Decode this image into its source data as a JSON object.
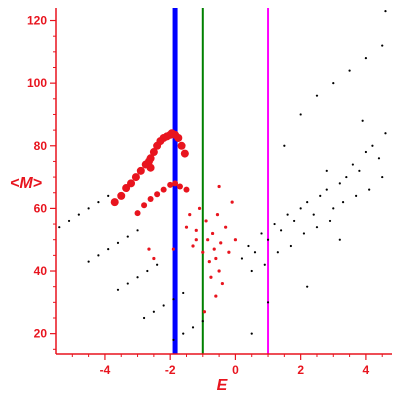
{
  "chart_data": {
    "type": "scatter",
    "title": "",
    "xlabel": "E",
    "ylabel": "<M>",
    "xlim": [
      -5.5,
      4.8
    ],
    "ylim": [
      13.5,
      124
    ],
    "x_ticks": [
      -4,
      -2,
      0,
      2,
      4
    ],
    "y_ticks": [
      20,
      40,
      60,
      80,
      100,
      120
    ],
    "grid": false,
    "legend": "none",
    "colors": {
      "axis": "#e8141e",
      "black_points": "#000000",
      "red_points": "#e8141e"
    },
    "vertical_lines": [
      {
        "x": -1.85,
        "color": "#0000ff"
      },
      {
        "x": -1.0,
        "color": "#008000"
      },
      {
        "x": 1.0,
        "color": "#ff00ff"
      }
    ],
    "series": [
      {
        "color": "#e8141e",
        "marker": "large red dots along the top ridge",
        "points": [
          [
            -3.7,
            62
          ],
          [
            -3.5,
            64
          ],
          [
            -3.35,
            66.5
          ],
          [
            -3.2,
            68
          ],
          [
            -3.05,
            70
          ],
          [
            -2.9,
            72
          ],
          [
            -2.75,
            74
          ],
          [
            -2.6,
            76
          ],
          [
            -2.5,
            78
          ],
          [
            -2.4,
            80
          ],
          [
            -2.3,
            81.5
          ],
          [
            -2.2,
            82.5
          ],
          [
            -2.1,
            83
          ],
          [
            -2.0,
            83.5
          ],
          [
            -1.95,
            84
          ],
          [
            -1.85,
            83.5
          ],
          [
            -1.75,
            82.5
          ],
          [
            -1.65,
            80
          ],
          [
            -1.55,
            77.5
          ],
          [
            -2.6,
            73
          ],
          [
            -2.65,
            75
          ]
        ]
      },
      {
        "color": "#e8141e",
        "marker": "medium red dots along the second ridge",
        "points": [
          [
            -3.0,
            58.5
          ],
          [
            -2.8,
            61
          ],
          [
            -2.6,
            63
          ],
          [
            -2.4,
            64.5
          ],
          [
            -2.2,
            66
          ],
          [
            -2.0,
            67.5
          ],
          [
            -1.85,
            68
          ],
          [
            -1.7,
            67
          ],
          [
            -1.5,
            66
          ]
        ]
      },
      {
        "color": "#e8141e",
        "marker": "small red scattered points",
        "points": [
          [
            -2.65,
            47
          ],
          [
            -2.5,
            44
          ],
          [
            -1.9,
            47
          ],
          [
            -1.5,
            54
          ],
          [
            -1.4,
            58
          ],
          [
            -1.3,
            48
          ],
          [
            -1.2,
            53
          ],
          [
            -1.1,
            60
          ],
          [
            -1.0,
            46
          ],
          [
            -0.9,
            56
          ],
          [
            -0.85,
            50
          ],
          [
            -0.8,
            43
          ],
          [
            -0.75,
            38
          ],
          [
            -0.7,
            52
          ],
          [
            -0.65,
            47
          ],
          [
            -0.6,
            44
          ],
          [
            -0.55,
            58
          ],
          [
            -0.5,
            40
          ],
          [
            -0.45,
            49
          ],
          [
            -0.4,
            36
          ],
          [
            -0.3,
            54
          ],
          [
            -0.2,
            46
          ],
          [
            -0.1,
            62
          ],
          [
            0.0,
            50
          ],
          [
            -0.6,
            32
          ],
          [
            -0.95,
            27
          ],
          [
            -1.2,
            50
          ],
          [
            -0.5,
            67
          ]
        ]
      },
      {
        "color": "#000000",
        "marker": "black diagonal trail and tiny dots",
        "points": [
          [
            -5.4,
            54
          ],
          [
            -5.1,
            56
          ],
          [
            -4.8,
            58
          ],
          [
            -4.5,
            60
          ],
          [
            -4.2,
            62
          ],
          [
            -3.9,
            64
          ],
          [
            -4.5,
            43
          ],
          [
            -4.2,
            45
          ],
          [
            -3.9,
            47
          ],
          [
            -3.6,
            49
          ],
          [
            -3.3,
            51
          ],
          [
            -3.0,
            53
          ],
          [
            -3.6,
            34
          ],
          [
            -3.3,
            36
          ],
          [
            -3.0,
            38
          ],
          [
            -2.7,
            40
          ],
          [
            -2.4,
            42
          ],
          [
            -2.8,
            25
          ],
          [
            -2.5,
            27
          ],
          [
            -2.2,
            29
          ],
          [
            -1.9,
            31
          ],
          [
            -1.6,
            33
          ],
          [
            -1.9,
            18
          ],
          [
            -1.6,
            20
          ],
          [
            -1.3,
            22
          ],
          [
            -1.0,
            24
          ]
        ]
      },
      {
        "color": "#000000",
        "marker": "black scatter cloud",
        "points": [
          [
            0.2,
            44
          ],
          [
            0.4,
            48
          ],
          [
            0.6,
            46
          ],
          [
            0.8,
            52
          ],
          [
            1.0,
            50
          ],
          [
            1.2,
            55
          ],
          [
            1.4,
            53
          ],
          [
            1.6,
            58
          ],
          [
            1.8,
            56
          ],
          [
            2.0,
            60
          ],
          [
            2.2,
            62
          ],
          [
            2.4,
            58
          ],
          [
            2.6,
            64
          ],
          [
            2.8,
            66
          ],
          [
            3.0,
            60
          ],
          [
            3.2,
            68
          ],
          [
            3.4,
            70
          ],
          [
            3.6,
            74
          ],
          [
            3.8,
            72
          ],
          [
            4.0,
            78
          ],
          [
            4.2,
            80
          ],
          [
            4.4,
            76
          ],
          [
            4.6,
            84
          ],
          [
            0.5,
            40
          ],
          [
            0.9,
            42
          ],
          [
            1.3,
            46
          ],
          [
            1.7,
            48
          ],
          [
            2.1,
            52
          ],
          [
            2.5,
            54
          ],
          [
            2.9,
            56
          ],
          [
            3.3,
            62
          ],
          [
            3.7,
            64
          ],
          [
            4.1,
            66
          ],
          [
            4.5,
            70
          ],
          [
            2.0,
            90
          ],
          [
            2.5,
            96
          ],
          [
            3.0,
            100
          ],
          [
            3.5,
            104
          ],
          [
            4.0,
            108
          ],
          [
            4.5,
            112
          ],
          [
            4.6,
            123
          ],
          [
            1.5,
            80
          ],
          [
            2.2,
            35
          ],
          [
            1.0,
            30
          ],
          [
            0.5,
            20
          ],
          [
            3.2,
            50
          ],
          [
            2.8,
            72
          ],
          [
            3.9,
            88
          ]
        ]
      }
    ]
  }
}
